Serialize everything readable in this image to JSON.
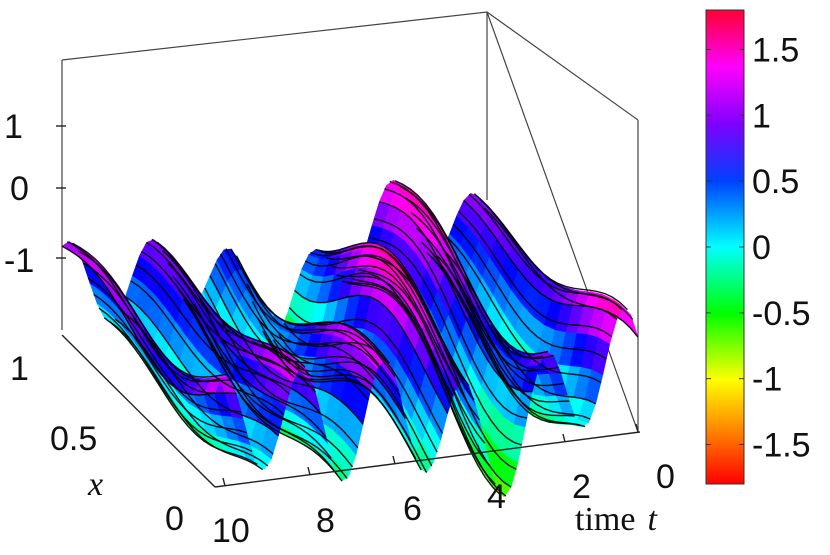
{
  "chart_data": {
    "type": "surface",
    "axes": {
      "x": {
        "label": "time",
        "label_var": "t",
        "ticks": [
          "10",
          "8",
          "6",
          "4",
          "2",
          "0"
        ],
        "range": [
          0,
          10
        ]
      },
      "y": {
        "label": "x",
        "ticks": [
          "0",
          "0.5",
          "1"
        ],
        "range": [
          0,
          1
        ]
      },
      "z": {
        "ticks": [
          "-1",
          "0",
          "1"
        ],
        "range": [
          -1.8,
          1.8
        ]
      }
    },
    "colorbar": {
      "ticks": [
        "1.5",
        "1",
        "0.5",
        "0",
        "-0.5",
        "-1",
        "-1.5"
      ],
      "range": [
        -1.8,
        1.8
      ],
      "colormap": "hsv-rainbow (red at min, magenta/red at max)",
      "stops": [
        "#ff0000",
        "#ffa000",
        "#ffff00",
        "#00ff00",
        "#00ffff",
        "#0000ff",
        "#8000ff",
        "#ff00ff",
        "#ff0040"
      ]
    },
    "surface": {
      "front_edge": {
        "x_at": 0,
        "oscillation_peaks_t": [
          9.0,
          7.0,
          5.0,
          3.2,
          1.4
        ],
        "min_z": -1.6,
        "max_z": 1.0
      },
      "back_edge": {
        "x_at": 1,
        "min_z": -1.1,
        "max_z": 1.8
      },
      "has_contours": true
    }
  }
}
